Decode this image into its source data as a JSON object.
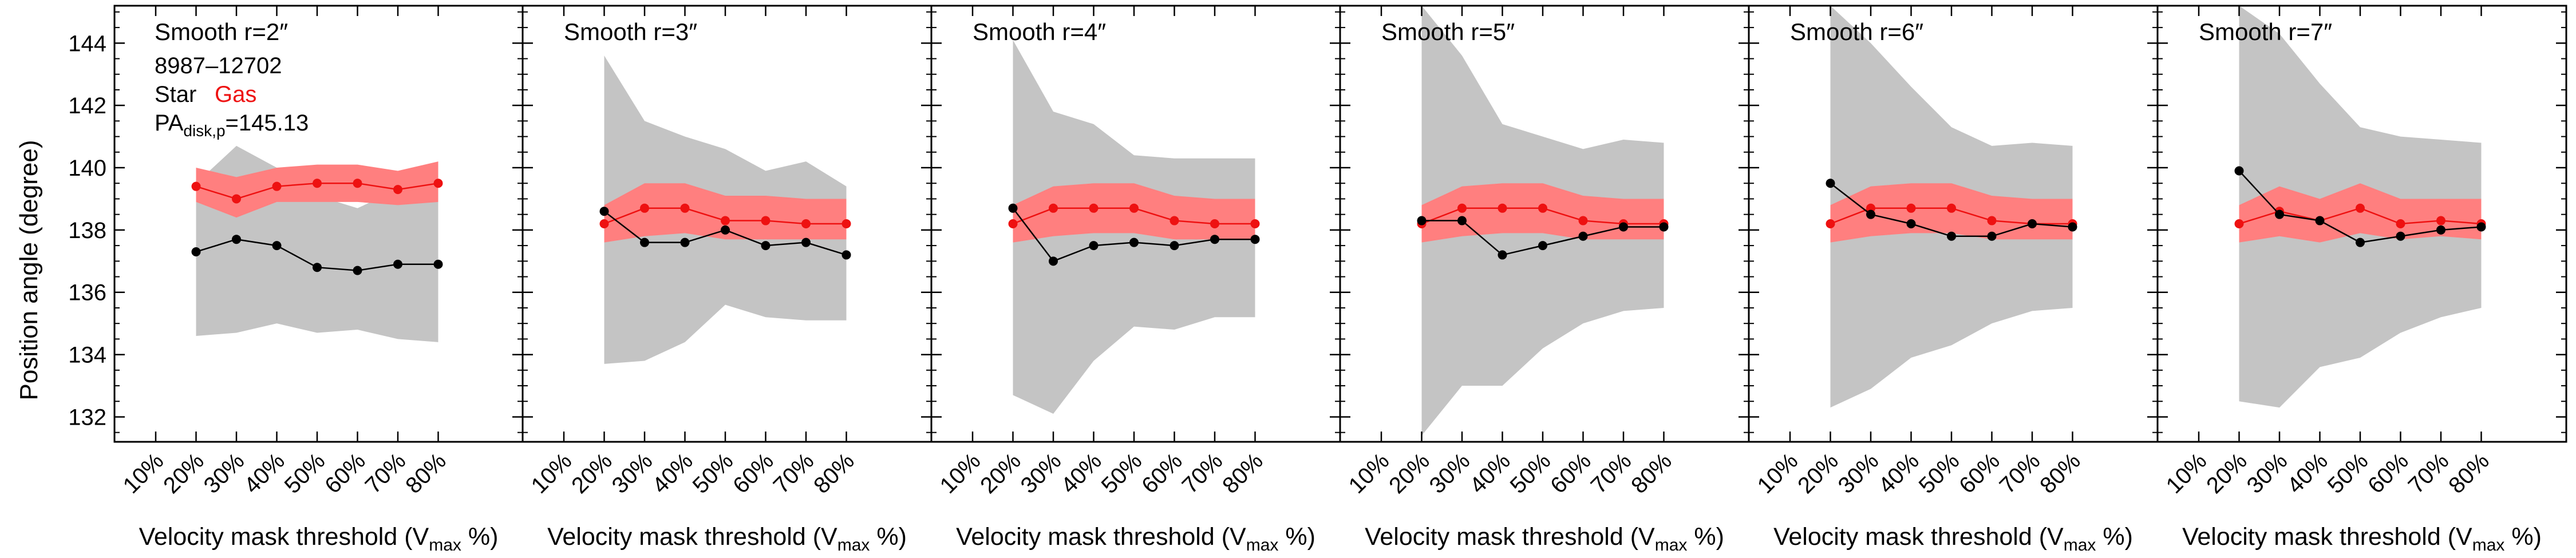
{
  "figure": {
    "ylabel": "Position angle (degree)",
    "xlabel_main": "Velocity mask threshold (V",
    "xlabel_sub": "max",
    "xlabel_tail": " %)",
    "galaxy_id": "8987–12702",
    "legend_star": "Star",
    "legend_gas": "Gas",
    "pa_prefix": "PA",
    "pa_sub": "disk,p",
    "pa_value": "=145.13"
  },
  "colors": {
    "star": "#000000",
    "gas": "#ee1111",
    "gas_band": "#ff7f7f",
    "star_band": "#c4c4c4"
  },
  "chart_data": [
    {
      "type": "line",
      "title": "Smooth r=2″",
      "categories": [
        "10%",
        "20%",
        "30%",
        "40%",
        "50%",
        "60%",
        "70%",
        "80%"
      ],
      "ylim": [
        131.2,
        145.2
      ],
      "yticks": [
        132,
        134,
        136,
        138,
        140,
        142,
        144
      ],
      "x": [
        20,
        30,
        40,
        50,
        60,
        70,
        80
      ],
      "series": [
        {
          "name": "Star",
          "values": [
            137.3,
            137.7,
            137.5,
            136.8,
            136.7,
            136.9,
            136.9
          ],
          "band_low": [
            134.6,
            134.7,
            135.0,
            134.7,
            134.8,
            134.5,
            134.4
          ],
          "band_high": [
            139.5,
            140.7,
            140.0,
            139.1,
            138.7,
            139.3,
            139.8
          ]
        },
        {
          "name": "Gas",
          "values": [
            139.4,
            139.0,
            139.4,
            139.5,
            139.5,
            139.3,
            139.5
          ],
          "band_low": [
            138.9,
            138.4,
            138.9,
            138.9,
            138.9,
            138.8,
            138.9
          ],
          "band_high": [
            140.0,
            139.7,
            140.0,
            140.1,
            140.1,
            139.9,
            140.2
          ]
        }
      ]
    },
    {
      "type": "line",
      "title": "Smooth r=3″",
      "categories": [
        "10%",
        "20%",
        "30%",
        "40%",
        "50%",
        "60%",
        "70%",
        "80%"
      ],
      "ylim": [
        131.2,
        145.2
      ],
      "yticks": [
        132,
        134,
        136,
        138,
        140,
        142,
        144
      ],
      "x": [
        20,
        30,
        40,
        50,
        60,
        70,
        80
      ],
      "series": [
        {
          "name": "Star",
          "values": [
            138.6,
            137.6,
            137.6,
            138.0,
            137.5,
            137.6,
            137.2
          ],
          "band_low": [
            133.7,
            133.8,
            134.4,
            135.6,
            135.2,
            135.1,
            135.1
          ],
          "band_high": [
            143.6,
            141.5,
            141.0,
            140.6,
            139.9,
            140.2,
            139.4
          ]
        },
        {
          "name": "Gas",
          "values": [
            138.2,
            138.7,
            138.7,
            138.3,
            138.3,
            138.2,
            138.2
          ],
          "band_low": [
            137.6,
            137.8,
            137.9,
            137.7,
            137.7,
            137.7,
            137.7
          ],
          "band_high": [
            138.8,
            139.5,
            139.5,
            139.1,
            139.1,
            139.0,
            139.0
          ]
        }
      ]
    },
    {
      "type": "line",
      "title": "Smooth r=4″",
      "categories": [
        "10%",
        "20%",
        "30%",
        "40%",
        "50%",
        "60%",
        "70%",
        "80%"
      ],
      "ylim": [
        131.2,
        145.2
      ],
      "yticks": [
        132,
        134,
        136,
        138,
        140,
        142,
        144
      ],
      "x": [
        20,
        30,
        40,
        50,
        60,
        70,
        80
      ],
      "series": [
        {
          "name": "Star",
          "values": [
            138.7,
            137.0,
            137.5,
            137.6,
            137.5,
            137.7,
            137.7
          ],
          "band_low": [
            132.7,
            132.1,
            133.8,
            134.9,
            134.8,
            135.2,
            135.2
          ],
          "band_high": [
            144.1,
            141.8,
            141.4,
            140.4,
            140.3,
            140.3,
            140.3
          ]
        },
        {
          "name": "Gas",
          "values": [
            138.2,
            138.7,
            138.7,
            138.7,
            138.3,
            138.2,
            138.2
          ],
          "band_low": [
            137.6,
            137.8,
            137.9,
            137.9,
            137.7,
            137.7,
            137.7
          ],
          "band_high": [
            138.8,
            139.4,
            139.5,
            139.5,
            139.1,
            139.0,
            139.0
          ]
        }
      ]
    },
    {
      "type": "line",
      "title": "Smooth r=5″",
      "categories": [
        "10%",
        "20%",
        "30%",
        "40%",
        "50%",
        "60%",
        "70%",
        "80%"
      ],
      "ylim": [
        131.2,
        145.2
      ],
      "yticks": [
        132,
        134,
        136,
        138,
        140,
        142,
        144
      ],
      "x": [
        20,
        30,
        40,
        50,
        60,
        70,
        80
      ],
      "series": [
        {
          "name": "Star",
          "values": [
            138.3,
            138.3,
            137.2,
            137.5,
            137.8,
            138.1,
            138.1
          ],
          "band_low": [
            131.4,
            133.0,
            133.0,
            134.2,
            135.0,
            135.4,
            135.5
          ],
          "band_high": [
            145.2,
            143.6,
            141.4,
            141.0,
            140.6,
            140.9,
            140.8
          ]
        },
        {
          "name": "Gas",
          "values": [
            138.2,
            138.7,
            138.7,
            138.7,
            138.3,
            138.2,
            138.2
          ],
          "band_low": [
            137.6,
            137.8,
            137.9,
            137.9,
            137.7,
            137.7,
            137.7
          ],
          "band_high": [
            138.8,
            139.4,
            139.5,
            139.5,
            139.1,
            139.0,
            139.0
          ]
        }
      ]
    },
    {
      "type": "line",
      "title": "Smooth r=6″",
      "categories": [
        "10%",
        "20%",
        "30%",
        "40%",
        "50%",
        "60%",
        "70%",
        "80%"
      ],
      "ylim": [
        131.2,
        145.2
      ],
      "yticks": [
        132,
        134,
        136,
        138,
        140,
        142,
        144
      ],
      "x": [
        20,
        30,
        40,
        50,
        60,
        70,
        80
      ],
      "series": [
        {
          "name": "Star",
          "values": [
            139.5,
            138.5,
            138.2,
            137.8,
            137.8,
            138.2,
            138.1
          ],
          "band_low": [
            132.3,
            132.9,
            133.9,
            134.3,
            135.0,
            135.4,
            135.5
          ],
          "band_high": [
            145.2,
            144.0,
            142.6,
            141.3,
            140.7,
            140.8,
            140.7
          ]
        },
        {
          "name": "Gas",
          "values": [
            138.2,
            138.7,
            138.7,
            138.7,
            138.3,
            138.2,
            138.2
          ],
          "band_low": [
            137.6,
            137.8,
            137.9,
            137.9,
            137.7,
            137.7,
            137.7
          ],
          "band_high": [
            138.8,
            139.4,
            139.5,
            139.5,
            139.1,
            139.0,
            139.0
          ]
        }
      ]
    },
    {
      "type": "line",
      "title": "Smooth r=7″",
      "categories": [
        "10%",
        "20%",
        "30%",
        "40%",
        "50%",
        "60%",
        "70%",
        "80%"
      ],
      "ylim": [
        131.2,
        145.2
      ],
      "yticks": [
        132,
        134,
        136,
        138,
        140,
        142,
        144
      ],
      "x": [
        20,
        30,
        40,
        50,
        60,
        70,
        80
      ],
      "series": [
        {
          "name": "Star",
          "values": [
            139.9,
            138.5,
            138.3,
            137.6,
            137.8,
            138.0,
            138.1
          ],
          "band_low": [
            132.5,
            132.3,
            133.6,
            133.9,
            134.7,
            135.2,
            135.5
          ],
          "band_high": [
            145.2,
            144.3,
            142.7,
            141.3,
            141.0,
            140.9,
            140.8
          ]
        },
        {
          "name": "Gas",
          "values": [
            138.2,
            138.6,
            138.3,
            138.7,
            138.2,
            138.3,
            138.2
          ],
          "band_low": [
            137.6,
            137.8,
            137.6,
            137.9,
            137.7,
            137.8,
            137.7
          ],
          "band_high": [
            138.8,
            139.4,
            139.0,
            139.5,
            139.0,
            139.0,
            139.0
          ]
        }
      ]
    }
  ]
}
